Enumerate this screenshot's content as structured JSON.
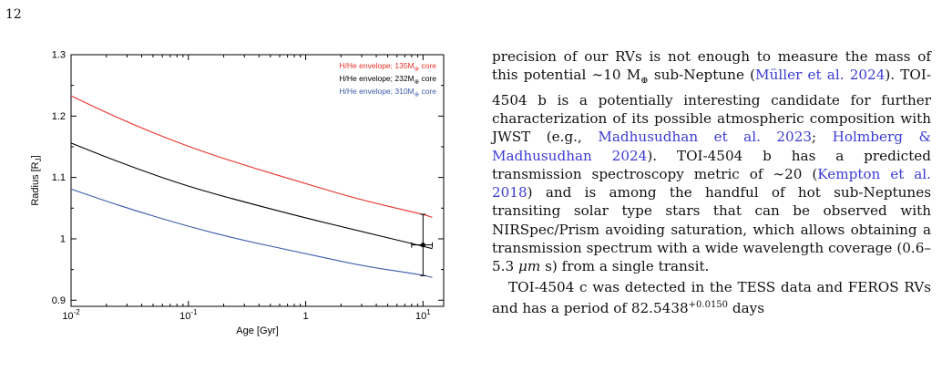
{
  "page": {
    "number": "12"
  },
  "colors": {
    "red_series": "#e8312b",
    "black_series": "#000000",
    "blue_series": "#3b5aa8",
    "citation": "#3b3bd4"
  },
  "chart_data": {
    "type": "line",
    "title": "",
    "xlabel": "Age [Gyr]",
    "ylabel": "Radius [R",
    "ylabel_sub": "J",
    "ylabel_tail": "]",
    "xscale": "log",
    "xlim": [
      0.01,
      15
    ],
    "ylim": [
      0.89,
      1.3
    ],
    "x_ticks": [
      {
        "value": 0.01,
        "base": "10",
        "exp": "-2"
      },
      {
        "value": 0.1,
        "base": "10",
        "exp": "-1"
      },
      {
        "value": 1,
        "base": "1",
        "exp": ""
      },
      {
        "value": 10,
        "base": "10",
        "exp": "1"
      }
    ],
    "y_ticks": [
      {
        "value": 0.9,
        "label": "0.9"
      },
      {
        "value": 1.0,
        "label": "1"
      },
      {
        "value": 1.1,
        "label": "1.1"
      },
      {
        "value": 1.2,
        "label": "1.2"
      },
      {
        "value": 1.3,
        "label": "1.3"
      }
    ],
    "legend_placement": "top-right",
    "series": [
      {
        "name": "H/He envelope; 135M",
        "name_sub": "⊕",
        "name_tail": " core",
        "color": "#e8312b",
        "x": [
          0.01,
          0.03,
          0.1,
          0.3,
          1,
          3,
          10,
          12
        ],
        "y": [
          1.233,
          1.19,
          1.15,
          1.12,
          1.09,
          1.063,
          1.04,
          1.035
        ]
      },
      {
        "name": "H/He envelope; 232M",
        "name_sub": "⊕",
        "name_tail": " core",
        "color": "#000000",
        "x": [
          0.01,
          0.03,
          0.1,
          0.3,
          1,
          3,
          10,
          12
        ],
        "y": [
          1.156,
          1.12,
          1.085,
          1.06,
          1.034,
          1.012,
          0.988,
          0.984
        ]
      },
      {
        "name": "H/He envelope; 310M",
        "name_sub": "⊕",
        "name_tail": " core",
        "color": "#3b5aa8",
        "x": [
          0.01,
          0.03,
          0.1,
          0.3,
          1,
          3,
          10,
          12
        ],
        "y": [
          1.081,
          1.05,
          1.02,
          0.997,
          0.976,
          0.956,
          0.941,
          0.937
        ]
      }
    ],
    "data_point": {
      "x": 10,
      "y": 0.99,
      "y_err": 0.05,
      "x_low": 8,
      "x_high": 12
    }
  },
  "text": {
    "p1": [
      {
        "t": "precision of our RVs is not enough to measure the mass of this potential ∼10 M"
      },
      {
        "t": "⊕",
        "sub": true
      },
      {
        "t": " sub-Neptune ("
      },
      {
        "t": "Müller et al. 2024",
        "cite": true
      },
      {
        "t": "). TOI-4504 b is a potentially interesting candidate for further characterization of its possible atmospheric composition with JWST (e.g., "
      },
      {
        "t": "Madhusudhan et al. 2023",
        "cite": true
      },
      {
        "t": "; "
      },
      {
        "t": "Holmberg & Madhusudhan 2024",
        "cite": true
      },
      {
        "t": "). TOI-4504 b has a predicted transmission spectroscopy metric of ∼20 ("
      },
      {
        "t": "Kempton et al. 2018",
        "cite": true
      },
      {
        "t": ") and is among the handful of hot sub-Neptunes transiting solar type stars that can be observed with NIRSpec/Prism avoiding saturation, which allows obtaining a transmission spectrum with a wide wavelength coverage (0.6–5.3 "
      },
      {
        "t": "μm",
        "italic": true
      },
      {
        "t": " s) from a single transit."
      }
    ],
    "p2": "TOI-4504 c was detected in the TESS data and FEROS RVs and has a period of 82.5438",
    "p2_sup": "+0.0150",
    "p2_tail": " days"
  }
}
